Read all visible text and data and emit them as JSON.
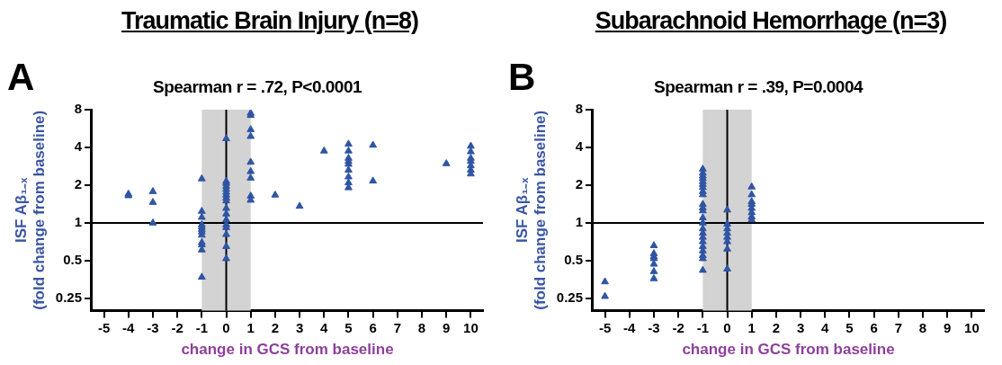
{
  "chart_data": [
    {
      "type": "scatter",
      "title": "Traumatic Brain Injury (n=8)",
      "annotations": [
        "A",
        "Spearman r = .72, P<0.0001"
      ],
      "xlabel": "change in GCS from baseline",
      "ylabel": "ISF Aβ₁₋ₓ\n(fold change from baseline)",
      "log": "y",
      "grid": false,
      "legend": false,
      "marker": "triangle",
      "xlim": [
        -5.5,
        10.5
      ],
      "xticks": [
        -5,
        -4,
        -3,
        -2,
        -1,
        0,
        1,
        2,
        3,
        4,
        5,
        6,
        7,
        8,
        9,
        10
      ],
      "ylim": [
        0.2,
        8
      ],
      "yticks": [
        0.25,
        0.5,
        1,
        2,
        4,
        8
      ],
      "bands": [
        {
          "axis": "x",
          "from": -1,
          "to": 1,
          "color": "#d3d3d3"
        }
      ],
      "ref_lines": [
        {
          "axis": "x",
          "value": 0,
          "color": "#000000"
        },
        {
          "axis": "y",
          "value": 1,
          "color": "#000000"
        }
      ],
      "series": [
        {
          "color": "#2f55a4",
          "x": [
            -4,
            -4,
            -3,
            -3,
            -3,
            -1,
            -1,
            -1,
            -1,
            -1,
            -1,
            -1,
            -1,
            -1,
            -1,
            -1,
            -1,
            0,
            0,
            0,
            0,
            0,
            0,
            0,
            0,
            0,
            0,
            0,
            0,
            0,
            0,
            0,
            0,
            0,
            1,
            1,
            1,
            1,
            1,
            1,
            1,
            1,
            1,
            2,
            3,
            4,
            5,
            5,
            5,
            5,
            5,
            5,
            5,
            5,
            5,
            6,
            6,
            9,
            10,
            10,
            10,
            10,
            10,
            10,
            10
          ],
          "values": [
            1.7,
            1.65,
            1.78,
            1.46,
            1.0,
            2.25,
            1.24,
            1.11,
            0.97,
            0.93,
            0.89,
            0.85,
            0.8,
            0.7,
            0.67,
            0.61,
            0.37,
            4.7,
            2.15,
            2.07,
            1.96,
            1.86,
            1.76,
            1.67,
            1.58,
            1.5,
            1.31,
            1.18,
            1.06,
            0.97,
            0.92,
            0.81,
            0.65,
            0.52,
            7.5,
            7.2,
            5.55,
            4.9,
            3.05,
            2.57,
            2.28,
            1.64,
            1.52,
            1.67,
            1.36,
            3.75,
            4.25,
            3.75,
            3.28,
            3.1,
            2.94,
            2.64,
            2.33,
            2.09,
            1.91,
            4.17,
            2.16,
            2.97,
            4.1,
            3.7,
            3.28,
            3.1,
            2.86,
            2.64,
            2.46
          ]
        }
      ]
    },
    {
      "type": "scatter",
      "title": "Subarachnoid Hemorrhage  (n=3)",
      "annotations": [
        "B",
        "Spearman r = .39, P=0.0004"
      ],
      "xlabel": "change in GCS from baseline",
      "ylabel": "ISF Aβ₁₋ₓ\n(fold change from baseline)",
      "log": "y",
      "grid": false,
      "legend": false,
      "marker": "triangle",
      "xlim": [
        -5.5,
        10.5
      ],
      "xticks": [
        -5,
        -4,
        -3,
        -2,
        -1,
        0,
        1,
        2,
        3,
        4,
        5,
        6,
        7,
        8,
        9,
        10
      ],
      "ylim": [
        0.2,
        8
      ],
      "yticks": [
        0.25,
        0.5,
        1,
        2,
        4,
        8
      ],
      "bands": [
        {
          "axis": "x",
          "from": -1,
          "to": 1,
          "color": "#d3d3d3"
        }
      ],
      "ref_lines": [
        {
          "axis": "x",
          "value": 0,
          "color": "#000000"
        },
        {
          "axis": "y",
          "value": 1,
          "color": "#000000"
        }
      ],
      "series": [
        {
          "color": "#2f55a4",
          "x": [
            -5,
            -5,
            -3,
            -3,
            -3,
            -3,
            -3,
            -3,
            -3,
            -1,
            -1,
            -1,
            -1,
            -1,
            -1,
            -1,
            -1,
            -1,
            -1,
            -1,
            -1,
            -1,
            -1,
            -1,
            -1,
            -1,
            -1,
            -1,
            -1,
            -1,
            -1,
            -1,
            0,
            0,
            0,
            0,
            0,
            0,
            0,
            0,
            1,
            1,
            1,
            1,
            1,
            1,
            1,
            1
          ],
          "values": [
            0.34,
            0.26,
            0.66,
            0.57,
            0.54,
            0.52,
            0.47,
            0.41,
            0.36,
            2.69,
            2.5,
            2.37,
            2.26,
            2.14,
            2.03,
            1.92,
            1.78,
            1.68,
            1.41,
            1.32,
            1.25,
            1.1,
            1.0,
            0.9,
            0.83,
            0.77,
            0.71,
            0.65,
            0.6,
            0.55,
            0.52,
            0.42,
            1.27,
            0.98,
            0.9,
            0.83,
            0.77,
            0.71,
            0.62,
            0.43,
            1.94,
            1.68,
            1.48,
            1.41,
            1.31,
            1.21,
            1.12,
            1.06
          ]
        }
      ]
    }
  ]
}
